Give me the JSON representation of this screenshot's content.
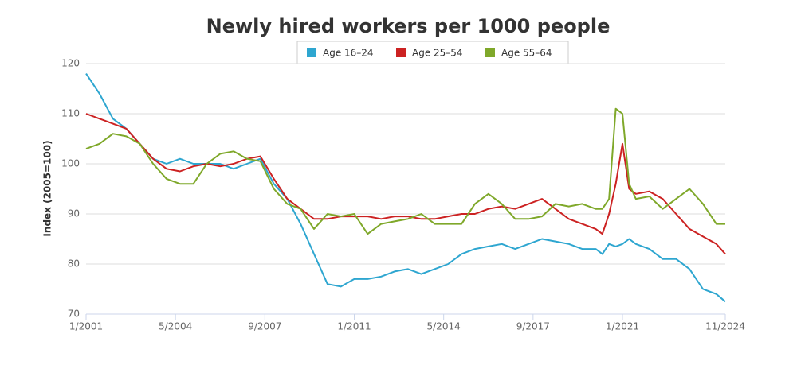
{
  "chart_data": {
    "type": "line",
    "title": "Newly hired workers per 1000 people",
    "ylabel": "Index (2005=100)",
    "x": [
      "1/2001",
      "7/2001",
      "1/2002",
      "7/2002",
      "1/2003",
      "7/2003",
      "1/2004",
      "7/2004",
      "1/2005",
      "7/2005",
      "1/2006",
      "7/2006",
      "1/2007",
      "7/2007",
      "1/2008",
      "7/2008",
      "1/2009",
      "7/2009",
      "1/2010",
      "7/2010",
      "1/2011",
      "7/2011",
      "1/2012",
      "7/2012",
      "1/2013",
      "7/2013",
      "1/2014",
      "7/2014",
      "1/2015",
      "7/2015",
      "1/2016",
      "7/2016",
      "1/2017",
      "7/2017",
      "1/2018",
      "7/2018",
      "1/2019",
      "7/2019",
      "1/2020",
      "4/2020",
      "7/2020",
      "10/2020",
      "1/2021",
      "4/2021",
      "7/2021",
      "1/2022",
      "7/2022",
      "1/2023",
      "7/2023",
      "1/2024",
      "7/2024",
      "11/2024"
    ],
    "series": [
      {
        "name": "Age 16–24",
        "color": "#2ea6d0",
        "values": [
          118,
          114,
          109,
          107,
          104,
          101,
          100,
          101,
          100,
          100,
          100,
          99,
          100,
          101,
          96,
          93,
          88,
          82,
          76,
          75.5,
          77,
          77,
          77.5,
          78.5,
          79,
          78,
          79,
          80,
          82,
          83,
          83.5,
          84,
          83,
          84,
          85,
          84.5,
          84,
          83,
          83,
          82,
          84,
          83.5,
          84,
          85,
          84,
          83,
          81,
          81,
          79,
          75,
          74,
          72.5
        ]
      },
      {
        "name": "Age 25–54",
        "color": "#cc2222",
        "values": [
          110,
          109,
          108,
          107,
          104,
          101,
          99,
          98.5,
          99.5,
          100,
          99.5,
          100,
          101,
          101.5,
          97,
          93,
          91,
          89,
          89,
          89.5,
          89.5,
          89.5,
          89,
          89.5,
          89.5,
          89,
          89,
          89.5,
          90,
          90,
          91,
          91.5,
          91,
          92,
          93,
          91,
          89,
          88,
          87,
          86,
          90,
          96,
          104,
          95,
          94,
          94.5,
          93,
          90,
          87,
          85.5,
          84,
          82
        ]
      },
      {
        "name": "Age 55–64",
        "color": "#7fa82a",
        "values": [
          103,
          104,
          106,
          105.5,
          104,
          100,
          97,
          96,
          96,
          100,
          102,
          102.5,
          101,
          100.5,
          95,
          92,
          91,
          87,
          90,
          89.5,
          90,
          86,
          88,
          88.5,
          89,
          90,
          88,
          88,
          88,
          92,
          94,
          92,
          89,
          89,
          89.5,
          92,
          91.5,
          92,
          91,
          91,
          93,
          111,
          110,
          96,
          93,
          93.5,
          91,
          93,
          95,
          92,
          88,
          88
        ]
      }
    ],
    "xlim": [
      "1/2001",
      "11/2024"
    ],
    "xticks": [
      "1/2001",
      "5/2004",
      "9/2007",
      "1/2011",
      "5/2014",
      "9/2017",
      "1/2021",
      "11/2024"
    ],
    "ylim": [
      70,
      120
    ],
    "yticks": [
      70,
      80,
      90,
      100,
      110,
      120
    ],
    "grid": true,
    "legend": "top"
  }
}
